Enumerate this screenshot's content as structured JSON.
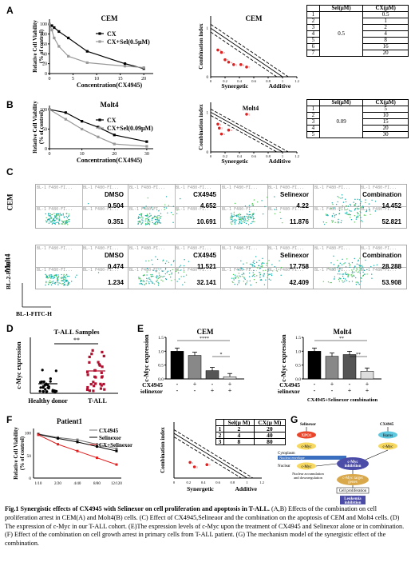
{
  "panels": {
    "A": "A",
    "B": "B",
    "C": "C",
    "D": "D",
    "E": "E",
    "F": "F",
    "G": "G"
  },
  "panel_a": {
    "title": "CEM",
    "ylabel": "Relative Cell Viability\n(% of control)",
    "xlabel": "Concentration(CX4945)",
    "legend": [
      "CX",
      "CX+Sel(0.5μM)"
    ],
    "ci_title": "CEM",
    "ci_ylabel": "Combination index",
    "ci_xlabels": [
      "Synergetic",
      "Additive"
    ],
    "table": {
      "headers": [
        "",
        "Sel(μM)",
        "CX(μM)"
      ],
      "rows": [
        [
          "1",
          "0.5"
        ],
        [
          "2",
          "1"
        ],
        [
          "3",
          "2"
        ],
        [
          "4",
          "4"
        ],
        [
          "5",
          "8"
        ],
        [
          "6",
          "16"
        ],
        [
          "7",
          "20"
        ]
      ],
      "sel": "0.5"
    }
  },
  "panel_b": {
    "title": "Molt4",
    "ylabel": "Relative Cell Viability\n(% of control)",
    "xlabel": "Concentration(CX4945)",
    "legend": [
      "CX",
      "CX+Sel(0.09μM)"
    ],
    "ci_title": "Molt4",
    "ci_ylabel": "Combination index",
    "ci_xlabels": [
      "Synergetic",
      "Additive"
    ],
    "table": {
      "headers": [
        "",
        "Sel(μM)",
        "CX(μM)"
      ],
      "rows": [
        [
          "1",
          "5"
        ],
        [
          "2",
          "10"
        ],
        [
          "3",
          "15"
        ],
        [
          "4",
          "20"
        ],
        [
          "5",
          "30"
        ]
      ],
      "sel": "0.09"
    }
  },
  "panel_c": {
    "row_labels": [
      "CEM",
      "Molt4"
    ],
    "axis_y": "BL-2-PI-H",
    "axis_x": "BL-1-FITC-H",
    "header": "BL-1 F480-FI...",
    "plots": [
      {
        "name": "DMSO",
        "top": "0.504",
        "bottom": "0.351"
      },
      {
        "name": "CX4945",
        "top": "4.652",
        "bottom": "10.691"
      },
      {
        "name": "Selinexor",
        "top": "4.22",
        "bottom": "11.876"
      },
      {
        "name": "Combination",
        "top": "14.452",
        "bottom": "52.821"
      },
      {
        "name": "DMSO",
        "top": "0.474",
        "bottom": "1.234"
      },
      {
        "name": "CX4945",
        "top": "11.521",
        "bottom": "32.141"
      },
      {
        "name": "Selinexor",
        "top": "17.758",
        "bottom": "42.409"
      },
      {
        "name": "Combination",
        "top": "28.288",
        "bottom": "53.908"
      }
    ]
  },
  "panel_d": {
    "title": "T-ALL Samples",
    "ylabel": "c-Myc expression",
    "groups": [
      "Healthy donor",
      "T-ALL"
    ],
    "sig": "**"
  },
  "panel_e": {
    "cem_title": "CEM",
    "molt_title": "Molt4",
    "ylabel": "c-Myc expression",
    "row1": "CX4945",
    "row2": "Selinexor",
    "signs_cx": [
      "-",
      "+",
      "-",
      "+"
    ],
    "signs_sel": [
      "-",
      "-",
      "+",
      "+"
    ],
    "sig_cem": [
      "****",
      "*"
    ],
    "sig_molt": [
      "**",
      "**"
    ],
    "foot": "CX4945+Selinexor combination"
  },
  "panel_f": {
    "title": "Patient1",
    "ylabel": "Relative Cell Viability\n(% of control)",
    "legend": [
      "CX4945",
      "Selinexor",
      "CX+Selinexor"
    ],
    "xticks": [
      "1/10",
      "2/20",
      "4/40",
      "8/80",
      "12/120"
    ],
    "ci_ylabel": "Combination index",
    "ci_xlabels": [
      "Synergetic",
      "Additive"
    ],
    "table": {
      "headers": [
        "",
        "Sel(μ M)",
        "CX(μ M)"
      ],
      "rows": [
        [
          "1",
          "2",
          "20"
        ],
        [
          "2",
          "4",
          "40"
        ],
        [
          "3",
          "8",
          "80"
        ]
      ]
    }
  },
  "panel_g": {
    "selinexor": "Selinexor",
    "xpo1": "XPO1",
    "cmyc": "c-Myc",
    "cytoplasm": "Cytoplasm",
    "envelope": "Nuclear envelope",
    "nuclear": "Nuclear",
    "nuc_acc": "Nuclear accumulation\nand downregulation",
    "cx": "CX4945",
    "ikaros": "Ikaros",
    "inhib": "c-Myc\ninhibition",
    "targets": "c-Myc target\ngenes",
    "prolif": "Cell proliferation",
    "leuk": "Leukemia\ninhibition"
  },
  "caption": {
    "title": "Fig.1 Synergistic effects of CX4945 with Selinexor on cell proliferation and apoptosis in T-ALL.",
    "body": " (A,B) Effects of the combination on cell proliferation arrest in CEM(A) and Molt4(B) cells. (C) Effect of CX4945,Selineaor and the combination on the apoptosis of CEM and Molt4 cells. (D) The expression of c-Myc in our T-ALL cohort. (E)The expression levels of c-Myc upon the treatment of CX4945 and Selinexor alone or in combination. (F) Effect of the combination on cell growth arrest in primary cells from T-ALL patient. (G) The mechanism model of the synergistic effect of the combination."
  },
  "chart_data": [
    {
      "type": "line",
      "title": "CEM",
      "ylabel": "Relative Cell Viability (% of control)",
      "xlabel": "Concentration(CX4945)",
      "xticks": [
        0,
        5,
        10,
        15,
        20
      ],
      "yticks": [
        0,
        20,
        40,
        60,
        80,
        100
      ],
      "ylim": [
        0,
        110
      ],
      "xlim": [
        0,
        22
      ],
      "series": [
        {
          "name": "CX",
          "x": [
            0,
            0.5,
            1,
            2,
            4,
            8,
            16,
            20
          ],
          "y": [
            100,
            97,
            93,
            85,
            72,
            45,
            20,
            10
          ]
        },
        {
          "name": "CX+Sel(0.5μM)",
          "x": [
            0,
            0.5,
            1,
            2,
            4,
            8,
            16,
            20
          ],
          "y": [
            100,
            88,
            72,
            55,
            35,
            22,
            15,
            12
          ]
        }
      ]
    },
    {
      "type": "scatter",
      "title": "CEM",
      "ylabel": "Combination index",
      "xticks": [
        0,
        0.2,
        0.4,
        0.6,
        0.8,
        1.0,
        1.2
      ],
      "yticks": [
        0,
        1
      ],
      "x": [
        0.1,
        0.15,
        0.2,
        0.25,
        0.32,
        0.42,
        0.5
      ],
      "y": [
        0.55,
        0.5,
        0.35,
        0.3,
        0.25,
        0.25,
        0.2
      ]
    },
    {
      "type": "line",
      "title": "Molt4",
      "ylabel": "Relative Cell Viability (% of control)",
      "xlabel": "Concentration(CX4945)",
      "xticks": [
        0,
        10,
        20,
        30
      ],
      "yticks": [
        0,
        50,
        100
      ],
      "ylim": [
        0,
        110
      ],
      "xlim": [
        0,
        32
      ],
      "series": [
        {
          "name": "CX",
          "x": [
            0,
            5,
            10,
            15,
            20,
            30
          ],
          "y": [
            100,
            92,
            70,
            55,
            35,
            18
          ]
        },
        {
          "name": "CX+Sel(0.09μM)",
          "x": [
            0,
            5,
            10,
            15,
            20,
            30
          ],
          "y": [
            100,
            75,
            50,
            30,
            12,
            6
          ]
        }
      ]
    },
    {
      "type": "scatter",
      "title": "Molt4",
      "ylabel": "Combination index",
      "xticks": [
        0,
        0.2,
        0.4,
        0.6,
        0.8,
        1.0,
        1.2
      ],
      "yticks": [
        0,
        1
      ],
      "x": [
        0.1,
        0.12,
        0.15,
        0.25,
        0.5
      ],
      "y": [
        0.7,
        0.6,
        0.45,
        0.55,
        0.95
      ]
    },
    {
      "type": "bar",
      "title": "CEM",
      "ylabel": "c-Myc expression",
      "categories": [
        "DMSO",
        "CX4945",
        "Selinexor",
        "Combination"
      ],
      "values": [
        1.0,
        0.85,
        0.3,
        0.08
      ],
      "ylim": [
        0,
        1.5
      ],
      "yticks": [
        0,
        0.5,
        1.0,
        1.5
      ]
    },
    {
      "type": "bar",
      "title": "Molt4",
      "ylabel": "c-Myc expression",
      "categories": [
        "DMSO",
        "CX4945",
        "Selinexor",
        "Combination"
      ],
      "values": [
        1.0,
        0.82,
        0.88,
        0.28
      ],
      "ylim": [
        0,
        1.5
      ],
      "yticks": [
        0,
        0.5,
        1.0,
        1.5
      ]
    },
    {
      "type": "line",
      "title": "Patient1",
      "xticks": [
        "1/10",
        "2/20",
        "4/40",
        "8/80",
        "12/120"
      ],
      "yticks": [
        0,
        50,
        100
      ],
      "series": [
        {
          "name": "CX4945",
          "y": [
            98,
            90,
            85,
            75,
            65
          ]
        },
        {
          "name": "Selinexor",
          "y": [
            97,
            88,
            80,
            70,
            60
          ]
        },
        {
          "name": "CX+Selinexor",
          "y": [
            96,
            75,
            60,
            45,
            30
          ]
        }
      ]
    }
  ]
}
